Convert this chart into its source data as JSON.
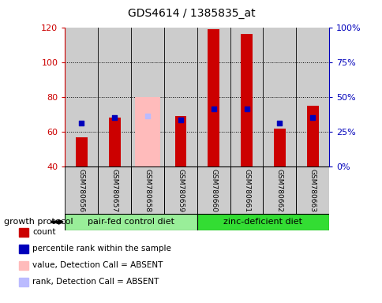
{
  "title": "GDS4614 / 1385835_at",
  "samples": [
    "GSM780656",
    "GSM780657",
    "GSM780658",
    "GSM780659",
    "GSM780660",
    "GSM780661",
    "GSM780662",
    "GSM780663"
  ],
  "count_values": [
    57,
    68,
    null,
    69,
    119,
    116,
    62,
    75
  ],
  "rank_values": [
    65,
    68,
    null,
    67,
    73,
    73,
    65,
    68
  ],
  "absent_value": [
    null,
    null,
    80,
    null,
    null,
    null,
    null,
    null
  ],
  "absent_rank": [
    null,
    null,
    69,
    null,
    null,
    null,
    null,
    null
  ],
  "ylim_left": [
    40,
    120
  ],
  "ylim_right": [
    0,
    100
  ],
  "yticks_left": [
    40,
    60,
    80,
    100,
    120
  ],
  "yticks_right": [
    0,
    25,
    50,
    75,
    100
  ],
  "yticklabels_right": [
    "0%",
    "25%",
    "50%",
    "75%",
    "100%"
  ],
  "group1_label": "pair-fed control diet",
  "group2_label": "zinc-deficient diet",
  "group1_indices": [
    0,
    1,
    2,
    3
  ],
  "group2_indices": [
    4,
    5,
    6,
    7
  ],
  "group1_color": "#99ee99",
  "group2_color": "#33dd33",
  "bar_bg_color": "#cccccc",
  "count_color": "#cc0000",
  "rank_color": "#0000bb",
  "absent_bar_color": "#ffbbbb",
  "absent_rank_color": "#bbbbff",
  "left_color": "#cc0000",
  "right_color": "#0000bb",
  "bar_width": 0.35,
  "dot_size": 25,
  "legend_items": [
    [
      "#cc0000",
      "count"
    ],
    [
      "#0000bb",
      "percentile rank within the sample"
    ],
    [
      "#ffbbbb",
      "value, Detection Call = ABSENT"
    ],
    [
      "#bbbbff",
      "rank, Detection Call = ABSENT"
    ]
  ]
}
